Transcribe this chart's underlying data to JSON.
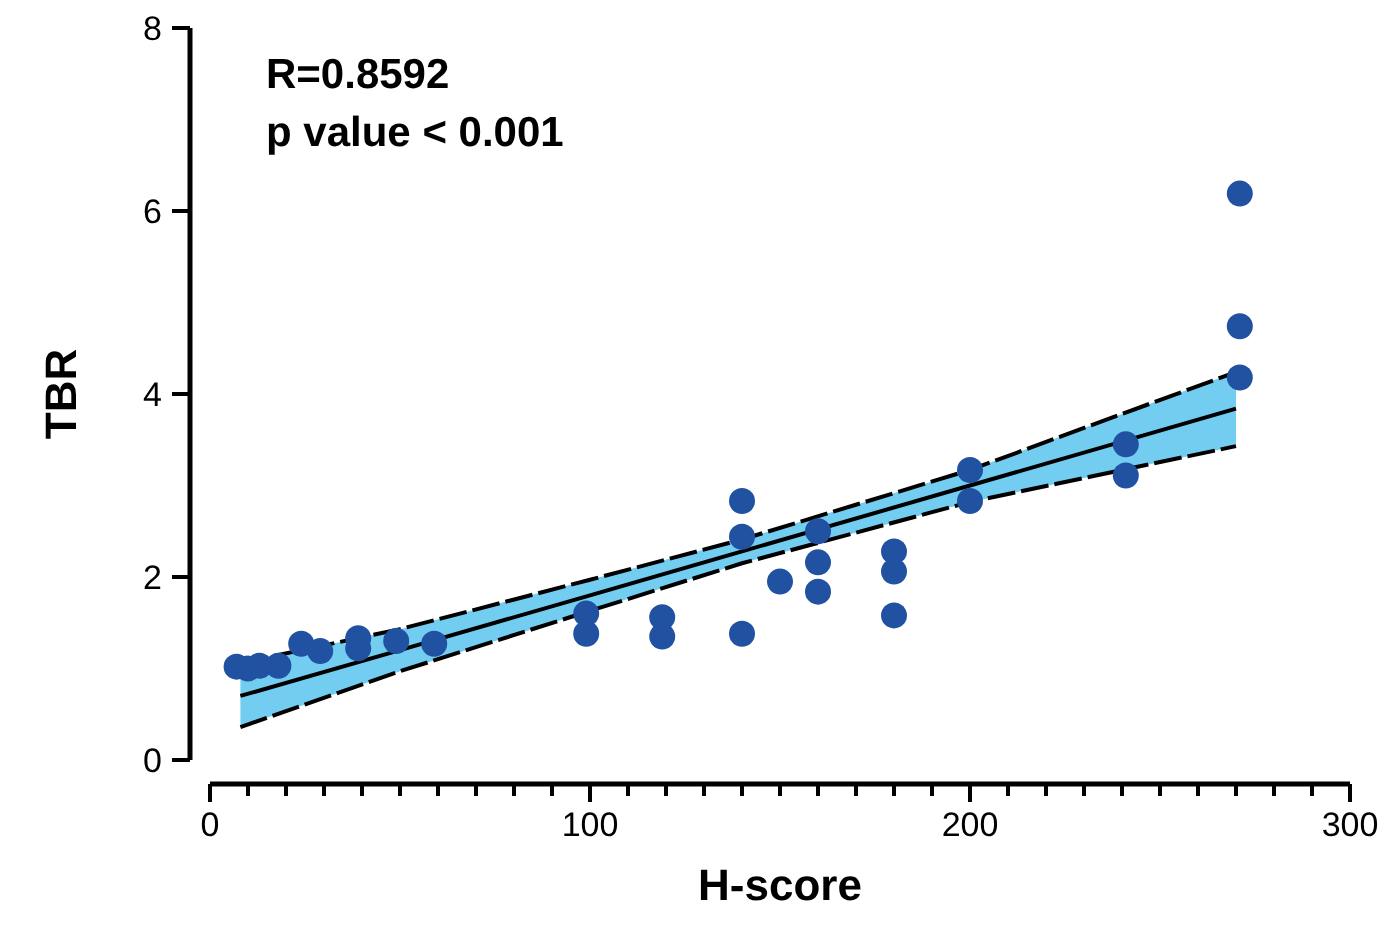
{
  "chart_data": {
    "type": "scatter",
    "xlabel": "H-score",
    "ylabel": "TBR",
    "annotations": [
      "R=0.8592",
      "p value < 0.001"
    ],
    "xlim": [
      0,
      300
    ],
    "ylim": [
      0,
      8
    ],
    "xticks": [
      0,
      {
        "value": 10,
        "label": null
      },
      {
        "value": 20,
        "label": null
      },
      {
        "value": 30,
        "label": null
      },
      {
        "value": 40,
        "label": null
      },
      {
        "value": 50,
        "label": null
      },
      {
        "value": 60,
        "label": null
      },
      {
        "value": 70,
        "label": null
      },
      {
        "value": 80,
        "label": null
      },
      {
        "value": 90,
        "label": null
      },
      100,
      {
        "value": 110,
        "label": null
      },
      {
        "value": 120,
        "label": null
      },
      {
        "value": 130,
        "label": null
      },
      {
        "value": 140,
        "label": null
      },
      {
        "value": 150,
        "label": null
      },
      {
        "value": 160,
        "label": null
      },
      {
        "value": 170,
        "label": null
      },
      {
        "value": 180,
        "label": null
      },
      {
        "value": 190,
        "label": null
      },
      200,
      {
        "value": 210,
        "label": null
      },
      {
        "value": 220,
        "label": null
      },
      {
        "value": 230,
        "label": null
      },
      {
        "value": 240,
        "label": null
      },
      {
        "value": 250,
        "label": null
      },
      {
        "value": 260,
        "label": null
      },
      {
        "value": 270,
        "label": null
      },
      {
        "value": 280,
        "label": null
      },
      {
        "value": 290,
        "label": null
      },
      300
    ],
    "yticks": [
      0,
      2,
      4,
      6,
      8
    ],
    "grid": false,
    "marker": "circle",
    "series": [
      {
        "color": "#2151a1",
        "x": [
          7,
          10,
          13,
          18,
          24,
          29,
          39,
          39,
          49,
          59,
          99,
          99,
          119,
          119,
          140,
          140,
          140,
          150,
          160,
          160,
          160,
          180,
          180,
          180,
          200,
          200,
          241,
          241,
          271,
          271,
          271
        ],
        "values": [
          1.02,
          1.0,
          1.03,
          1.03,
          1.27,
          1.19,
          1.33,
          1.22,
          1.3,
          1.27,
          1.6,
          1.38,
          1.56,
          1.35,
          2.83,
          2.44,
          1.38,
          1.95,
          2.5,
          2.16,
          1.84,
          2.28,
          2.06,
          1.58,
          3.17,
          2.83,
          3.45,
          3.11,
          6.19,
          4.74,
          4.18
        ]
      },
      {
        "type": "line",
        "color": "#000000",
        "line_style": "solid",
        "marker": "none",
        "x": [
          8,
          50,
          100,
          140,
          200,
          270
        ],
        "values": [
          0.7,
          1.2,
          1.8,
          2.28,
          3.0,
          3.84
        ],
        "upper": [
          1.06,
          1.43,
          1.97,
          2.41,
          3.17,
          4.24
        ],
        "lower": [
          0.36,
          0.97,
          1.63,
          2.15,
          2.82,
          3.43
        ]
      },
      {
        "type": "line",
        "color": "#000000",
        "line_style": "dashed",
        "marker": "none",
        "x": [
          8,
          50,
          100,
          140,
          200,
          270
        ],
        "values": [
          1.06,
          1.43,
          1.97,
          2.41,
          3.17,
          4.24
        ]
      },
      {
        "type": "line",
        "color": "#000000",
        "line_style": "dashed",
        "marker": "none",
        "x": [
          8,
          50,
          100,
          140,
          200,
          270
        ],
        "values": [
          0.36,
          0.97,
          1.63,
          2.15,
          2.82,
          3.43
        ]
      }
    ]
  }
}
